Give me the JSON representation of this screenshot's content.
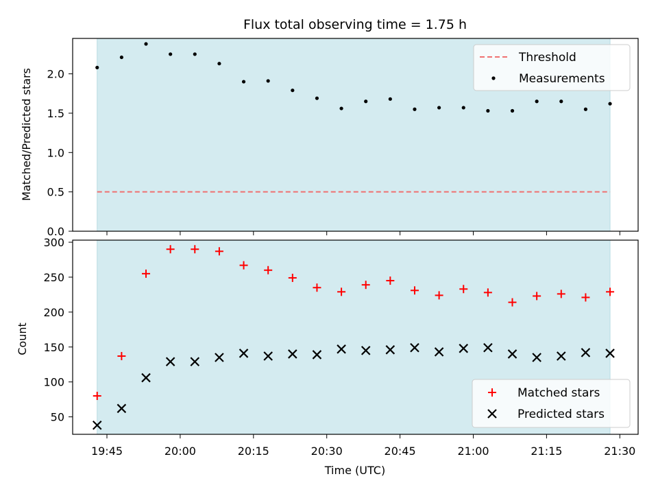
{
  "chart_data": [
    {
      "type": "scatter",
      "title": "Flux total observing time = 1.75 h",
      "ylabel": "Matched/Predicted stars",
      "xlabel": "",
      "ylim": [
        0,
        2.45
      ],
      "yticks": [
        "0.0",
        "0.5",
        "1.0",
        "1.5",
        "2.0"
      ],
      "shaded_span": [
        "19:43",
        "21:28"
      ],
      "threshold": {
        "name": "Threshold",
        "value": 0.5,
        "color": "#f07070",
        "style": "dashed"
      },
      "series": [
        {
          "name": "Measurements",
          "marker": "dot",
          "color": "#000000",
          "x": [
            "19:43",
            "19:48",
            "19:53",
            "19:58",
            "20:03",
            "20:08",
            "20:13",
            "20:18",
            "20:23",
            "20:28",
            "20:33",
            "20:38",
            "20:43",
            "20:48",
            "20:53",
            "20:58",
            "21:03",
            "21:08",
            "21:13",
            "21:18",
            "21:23",
            "21:28"
          ],
          "y": [
            2.08,
            2.21,
            2.38,
            2.25,
            2.25,
            2.13,
            1.9,
            1.91,
            1.79,
            1.69,
            1.56,
            1.65,
            1.68,
            1.55,
            1.57,
            1.57,
            1.53,
            1.53,
            1.65,
            1.65,
            1.55,
            1.62
          ]
        }
      ],
      "legend_position": "upper right"
    },
    {
      "type": "scatter",
      "title": "",
      "ylabel": "Count",
      "xlabel": "Time (UTC)",
      "ylim": [
        25,
        303
      ],
      "yticks": [
        "50",
        "100",
        "150",
        "200",
        "250",
        "300"
      ],
      "xticks": [
        "19:45",
        "20:00",
        "20:15",
        "20:30",
        "20:45",
        "21:00",
        "21:15",
        "21:30"
      ],
      "shaded_span": [
        "19:43",
        "21:28"
      ],
      "series": [
        {
          "name": "Matched stars",
          "marker": "plus",
          "color": "#ff0000",
          "x": [
            "19:43",
            "19:48",
            "19:53",
            "19:58",
            "20:03",
            "20:08",
            "20:13",
            "20:18",
            "20:23",
            "20:28",
            "20:33",
            "20:38",
            "20:43",
            "20:48",
            "20:53",
            "20:58",
            "21:03",
            "21:08",
            "21:13",
            "21:18",
            "21:23",
            "21:28"
          ],
          "y": [
            80,
            137,
            255,
            290,
            290,
            287,
            267,
            260,
            249,
            235,
            229,
            239,
            245,
            231,
            224,
            233,
            228,
            214,
            223,
            226,
            221,
            229
          ]
        },
        {
          "name": "Predicted stars",
          "marker": "x",
          "color": "#000000",
          "x": [
            "19:43",
            "19:48",
            "19:53",
            "19:58",
            "20:03",
            "20:08",
            "20:13",
            "20:18",
            "20:23",
            "20:28",
            "20:33",
            "20:38",
            "20:43",
            "20:48",
            "20:53",
            "20:58",
            "21:03",
            "21:08",
            "21:13",
            "21:18",
            "21:23",
            "21:28"
          ],
          "y": [
            38,
            62,
            106,
            129,
            129,
            135,
            141,
            137,
            140,
            139,
            147,
            145,
            146,
            149,
            143,
            148,
            149,
            140,
            135,
            137,
            142,
            141
          ]
        }
      ],
      "legend_position": "lower right"
    }
  ],
  "colors": {
    "span_fill": "#d4ebf0",
    "span_edge": "#b8dbe3",
    "axes": "#000000"
  }
}
